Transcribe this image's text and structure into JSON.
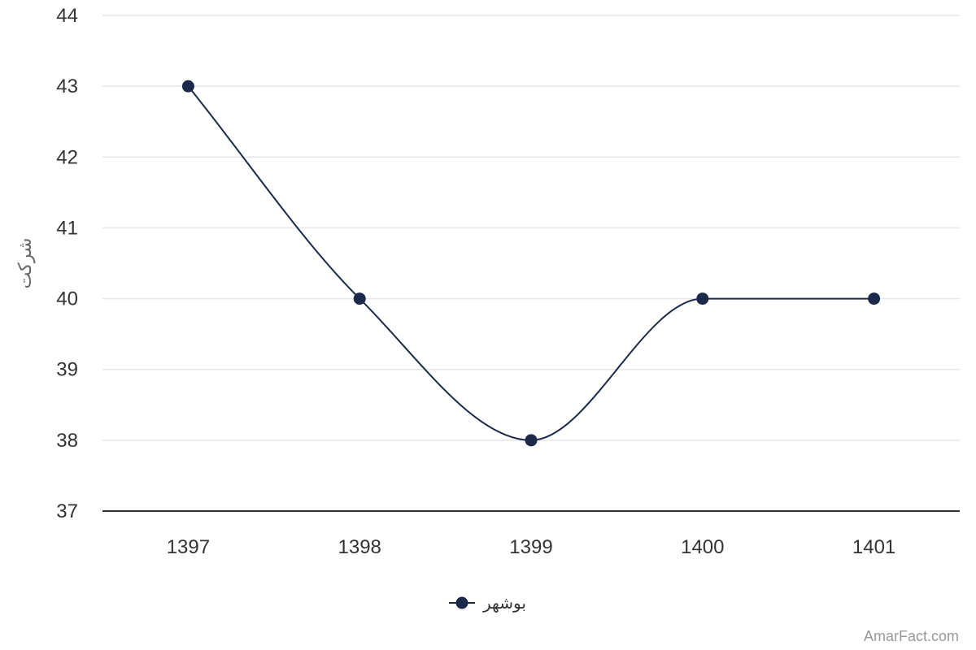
{
  "chart_data": {
    "type": "line",
    "smooth": true,
    "categories": [
      "1397",
      "1398",
      "1399",
      "1400",
      "1401"
    ],
    "series": [
      {
        "name": "بوشهر",
        "values": [
          43,
          40,
          38,
          40,
          40
        ],
        "color": "#1b2a4a"
      }
    ],
    "ylabel": "شرکت",
    "xlabel": "",
    "ylim": [
      37,
      44
    ],
    "yticks": [
      37,
      38,
      39,
      40,
      41,
      42,
      43,
      44
    ],
    "grid": true,
    "legend_position": "bottom-center",
    "gridline_color": "#e6e6e6",
    "axis_color": "#333333"
  },
  "credit": "AmarFact.com"
}
